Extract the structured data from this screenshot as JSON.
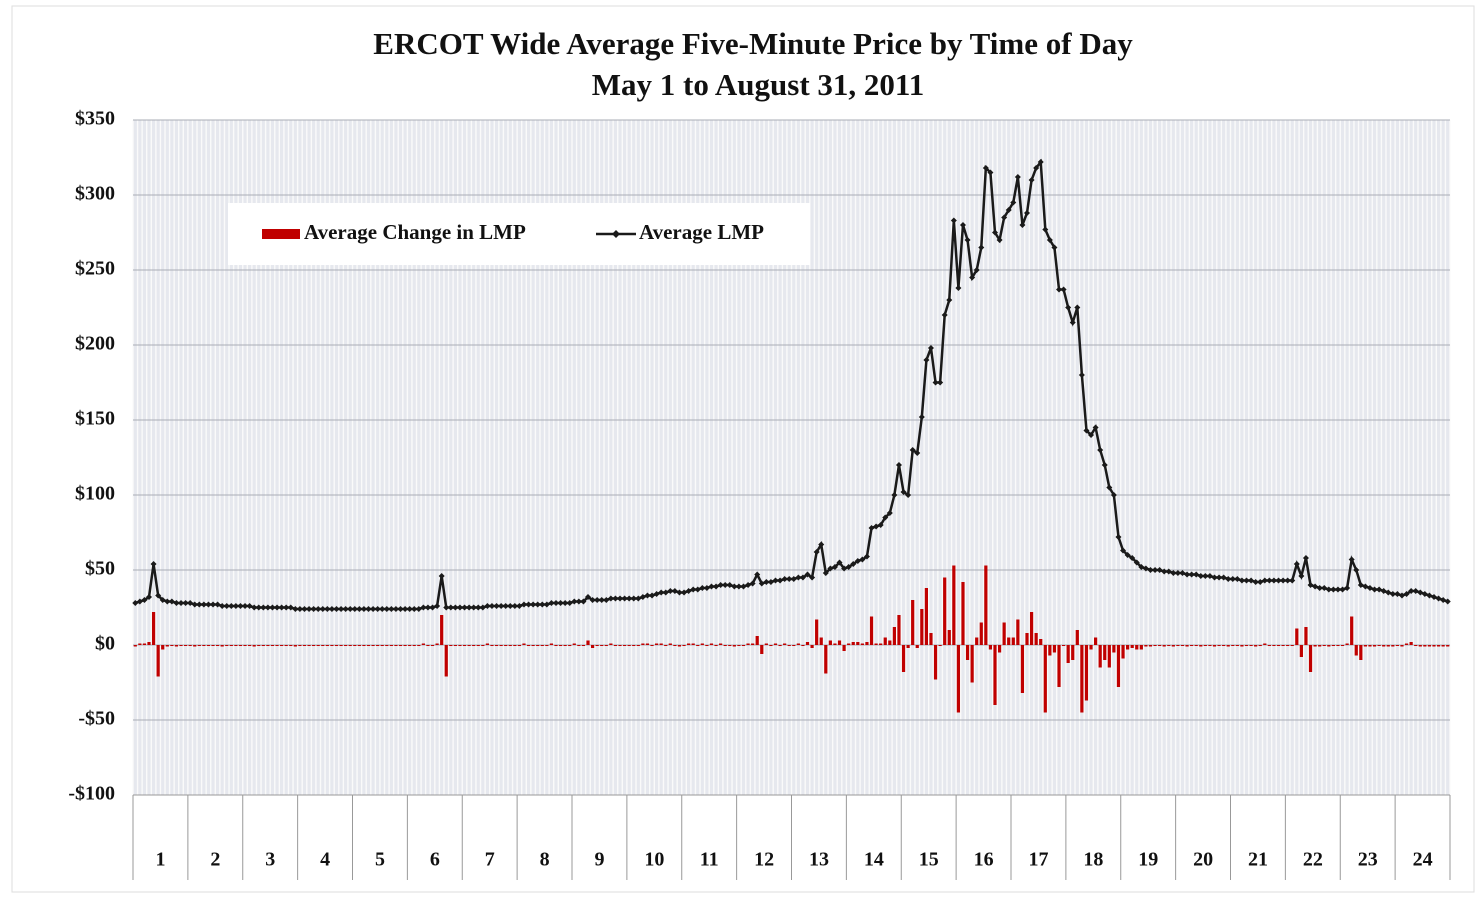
{
  "chart_data": {
    "type": "bar_line",
    "title": "ERCOT Wide Average Five-Minute Price by Time of Day",
    "subtitle": "May 1 to August 31, 2011",
    "categories": [
      null,
      null,
      null,
      null,
      null,
      "1",
      null,
      null,
      null,
      null,
      null,
      null,
      null,
      null,
      null,
      null,
      null,
      "2",
      null,
      null,
      null,
      null,
      null,
      null,
      null,
      null,
      null,
      null,
      null,
      "3",
      null,
      null,
      null,
      null,
      null,
      null,
      null,
      null,
      null,
      null,
      null,
      "4",
      null,
      null,
      null,
      null,
      null,
      null,
      null,
      null,
      null,
      null,
      null,
      "5",
      null,
      null,
      null,
      null,
      null,
      null,
      null,
      null,
      null,
      null,
      null,
      "6",
      null,
      null,
      null,
      null,
      null,
      null,
      null,
      null,
      null,
      null,
      null,
      "7",
      null,
      null,
      null,
      null,
      null,
      null,
      null,
      null,
      null,
      null,
      null,
      "8",
      null,
      null,
      null,
      null,
      null,
      null,
      null,
      null,
      null,
      null,
      null,
      "9",
      null,
      null,
      null,
      null,
      null,
      null,
      null,
      null,
      null,
      null,
      null,
      "10",
      null,
      null,
      null,
      null,
      null,
      null,
      null,
      null,
      null,
      null,
      null,
      "11",
      null,
      null,
      null,
      null,
      null,
      null,
      null,
      null,
      null,
      null,
      null,
      "12",
      null,
      null,
      null,
      null,
      null,
      null,
      null,
      null,
      null,
      null,
      null,
      "13",
      null,
      null,
      null,
      null,
      null,
      null,
      null,
      null,
      null,
      null,
      null,
      "14",
      null,
      null,
      null,
      null,
      null,
      null,
      null,
      null,
      null,
      null,
      null,
      "15",
      null,
      null,
      null,
      null,
      null,
      null,
      null,
      null,
      null,
      null,
      null,
      "16",
      null,
      null,
      null,
      null,
      null,
      null,
      null,
      null,
      null,
      null,
      null,
      "17",
      null,
      null,
      null,
      null,
      null,
      null,
      null,
      null,
      null,
      null,
      null,
      "18",
      null,
      null,
      null,
      null,
      null,
      null,
      null,
      null,
      null,
      null,
      null,
      "19",
      null,
      null,
      null,
      null,
      null,
      null,
      null,
      null,
      null,
      null,
      null,
      "20",
      null,
      null,
      null,
      null,
      null,
      null,
      null,
      null,
      null,
      null,
      null,
      "21",
      null,
      null,
      null,
      null,
      null,
      null,
      null,
      null,
      null,
      null,
      null,
      "22",
      null,
      null,
      null,
      null,
      null,
      null,
      null,
      null,
      null,
      null,
      null,
      "23",
      null,
      null,
      null,
      null,
      null,
      null,
      null,
      null,
      null,
      null,
      null,
      "24",
      null,
      null,
      null,
      null,
      null,
      null
    ],
    "series": [
      {
        "name": "Average Change in LMP",
        "type": "bar",
        "color": "#c00000",
        "values": [
          -1,
          1,
          1,
          2,
          22,
          -21,
          -3,
          -1,
          0,
          -1,
          0,
          0,
          0,
          -1,
          0,
          0,
          0,
          0,
          0,
          -1,
          0,
          0,
          0,
          0,
          0,
          0,
          -1,
          0,
          0,
          0,
          0,
          0,
          0,
          0,
          0,
          -1,
          0,
          0,
          0,
          0,
          0,
          0,
          0,
          0,
          0,
          0,
          0,
          0,
          0,
          0,
          0,
          0,
          0,
          0,
          0,
          0,
          0,
          0,
          0,
          0,
          0,
          0,
          0,
          1,
          0,
          0,
          1,
          20,
          -21,
          0,
          0,
          0,
          0,
          0,
          0,
          0,
          0,
          1,
          0,
          0,
          0,
          0,
          0,
          0,
          0,
          1,
          0,
          0,
          0,
          0,
          0,
          1,
          0,
          0,
          0,
          0,
          1,
          0,
          0,
          3,
          -2,
          0,
          0,
          0,
          1,
          0,
          0,
          0,
          0,
          0,
          0,
          1,
          1,
          0,
          1,
          1,
          0,
          1,
          0,
          -1,
          0,
          1,
          1,
          0,
          1,
          0,
          1,
          0,
          1,
          0,
          0,
          -1,
          0,
          0,
          1,
          1,
          6,
          -6,
          1,
          0,
          1,
          0,
          1,
          0,
          0,
          1,
          0,
          2,
          -2,
          17,
          5,
          -19,
          3,
          1,
          3,
          -4,
          1,
          2,
          2,
          1,
          2,
          19,
          1,
          1,
          5,
          3,
          12,
          20,
          -18,
          -2,
          30,
          -2,
          24,
          38,
          8,
          -23,
          0,
          45,
          10,
          53,
          -45,
          42,
          -10,
          -25,
          5,
          15,
          53,
          -3,
          -40,
          -5,
          15,
          5,
          5,
          17,
          -32,
          8,
          22,
          8,
          4,
          -45,
          -7,
          -5,
          -28,
          0,
          -12,
          -10,
          10,
          -45,
          -37,
          -3,
          5,
          -15,
          -10,
          -15,
          -5,
          -28,
          -9,
          -3,
          -2,
          -3,
          -3,
          -1,
          -1,
          0,
          0,
          -1,
          0,
          -1,
          0,
          0,
          -1,
          0,
          0,
          -1,
          0,
          0,
          -1,
          0,
          0,
          -1,
          0,
          0,
          -1,
          0,
          0,
          -1,
          0,
          1,
          0,
          0,
          0,
          0,
          0,
          0,
          11,
          -8,
          12,
          -18,
          -1,
          -1,
          0,
          -1,
          0,
          0,
          0,
          1,
          19,
          -7,
          -10,
          -1,
          -1,
          -1,
          0,
          -1,
          -1,
          -1,
          0,
          -1,
          1,
          2,
          0,
          -1,
          -1,
          -1,
          -1,
          -1,
          -1,
          -1
        ]
      },
      {
        "name": "Average LMP",
        "type": "line",
        "color": "#1a1a1a",
        "values": [
          28,
          29,
          30,
          32,
          54,
          33,
          30,
          29,
          29,
          28,
          28,
          28,
          28,
          27,
          27,
          27,
          27,
          27,
          27,
          26,
          26,
          26,
          26,
          26,
          26,
          26,
          25,
          25,
          25,
          25,
          25,
          25,
          25,
          25,
          25,
          24,
          24,
          24,
          24,
          24,
          24,
          24,
          24,
          24,
          24,
          24,
          24,
          24,
          24,
          24,
          24,
          24,
          24,
          24,
          24,
          24,
          24,
          24,
          24,
          24,
          24,
          24,
          24,
          25,
          25,
          25,
          26,
          46,
          25,
          25,
          25,
          25,
          25,
          25,
          25,
          25,
          25,
          26,
          26,
          26,
          26,
          26,
          26,
          26,
          26,
          27,
          27,
          27,
          27,
          27,
          27,
          28,
          28,
          28,
          28,
          28,
          29,
          29,
          29,
          32,
          30,
          30,
          30,
          30,
          31,
          31,
          31,
          31,
          31,
          31,
          31,
          32,
          33,
          33,
          34,
          35,
          35,
          36,
          36,
          35,
          35,
          36,
          37,
          37,
          38,
          38,
          39,
          39,
          40,
          40,
          40,
          39,
          39,
          39,
          40,
          41,
          47,
          41,
          42,
          42,
          43,
          43,
          44,
          44,
          44,
          45,
          45,
          47,
          45,
          62,
          67,
          48,
          51,
          52,
          55,
          51,
          52,
          54,
          56,
          57,
          59,
          78,
          79,
          80,
          85,
          88,
          100,
          120,
          102,
          100,
          130,
          128,
          152,
          190,
          198,
          175,
          175,
          220,
          230,
          283,
          238,
          280,
          270,
          245,
          250,
          265,
          318,
          315,
          275,
          270,
          285,
          290,
          295,
          312,
          280,
          288,
          310,
          318,
          322,
          277,
          270,
          265,
          237,
          237,
          225,
          215,
          225,
          180,
          143,
          140,
          145,
          130,
          120,
          105,
          100,
          72,
          63,
          60,
          58,
          55,
          52,
          51,
          50,
          50,
          50,
          49,
          49,
          48,
          48,
          48,
          47,
          47,
          47,
          46,
          46,
          46,
          45,
          45,
          45,
          44,
          44,
          44,
          43,
          43,
          43,
          42,
          42,
          43,
          43,
          43,
          43,
          43,
          43,
          43,
          54,
          46,
          58,
          40,
          39,
          38,
          38,
          37,
          37,
          37,
          37,
          38,
          57,
          50,
          40,
          39,
          38,
          37,
          37,
          36,
          35,
          34,
          34,
          33,
          34,
          36,
          36,
          35,
          34,
          33,
          32,
          31,
          30,
          29
        ]
      }
    ],
    "ylim": [
      -100,
      350
    ],
    "yticks": [
      {
        "value": -100,
        "label": "-$100"
      },
      {
        "value": -50,
        "label": "-$50"
      },
      {
        "value": 0,
        "label": "$0"
      },
      {
        "value": 50,
        "label": "$50"
      },
      {
        "value": 100,
        "label": "$100"
      },
      {
        "value": 150,
        "label": "$150"
      },
      {
        "value": 200,
        "label": "$200"
      },
      {
        "value": 250,
        "label": "$250"
      },
      {
        "value": 300,
        "label": "$300"
      },
      {
        "value": 350,
        "label": "$350"
      }
    ],
    "grid": true,
    "legend": "top-left"
  }
}
